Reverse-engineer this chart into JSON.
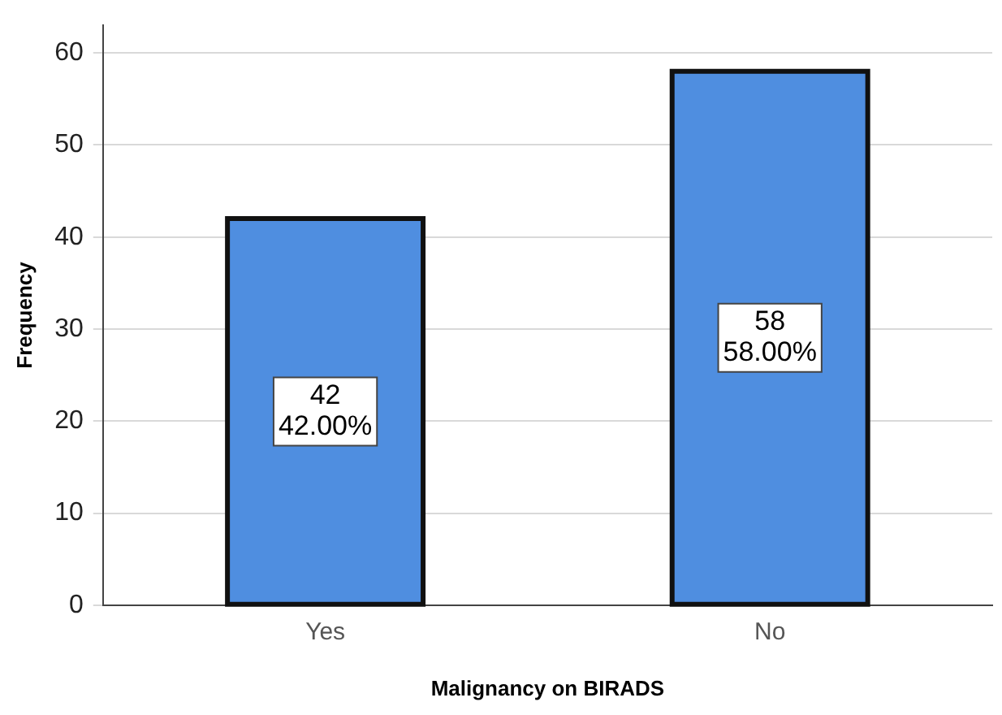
{
  "chart_data": {
    "type": "bar",
    "xlabel": "Malignancy on BIRADS",
    "ylabel": "Frequency",
    "categories": [
      "Yes",
      "No"
    ],
    "values": [
      42,
      58
    ],
    "value_labels": [
      "42\n42.00%",
      "58\n58.00%"
    ],
    "color": "#4f8ee0",
    "ylim": [
      0,
      63
    ],
    "yticks": [
      0,
      10,
      20,
      30,
      40,
      50,
      60
    ],
    "grid": "y",
    "legend": false
  }
}
